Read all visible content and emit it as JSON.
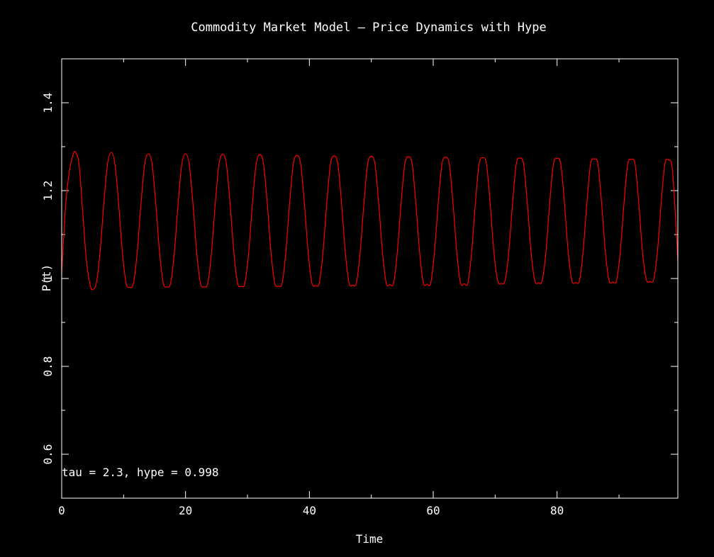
{
  "chart_data": {
    "type": "line",
    "title": "Commodity Market Model — Price Dynamics with Hype",
    "xlabel": "Time",
    "ylabel": "P(t)",
    "xlim": [
      0,
      99.5
    ],
    "ylim": [
      0.5,
      1.5
    ],
    "xticks": [
      0,
      20,
      40,
      60,
      80
    ],
    "yticks": [
      0.6,
      0.8,
      1,
      1.2,
      1.4
    ],
    "xtick_labels": [
      "0",
      "20",
      "40",
      "60",
      "80"
    ],
    "ytick_labels": [
      "0.6",
      "0.8",
      "1",
      "1.2",
      "1.4"
    ],
    "annotation": "tau = 2.3, hype = 0.998",
    "grid": false,
    "series": [
      {
        "color": "#ff0000",
        "points": [
          [
            0.0,
            1.01
          ],
          [
            0.6,
            1.16
          ],
          [
            1.2,
            1.24
          ],
          [
            1.8,
            1.28
          ],
          [
            2.2,
            1.288
          ],
          [
            2.8,
            1.26
          ],
          [
            3.4,
            1.15
          ],
          [
            4.0,
            1.04
          ],
          [
            4.6,
            0.985
          ],
          [
            5.0,
            0.975
          ],
          [
            5.6,
            0.99
          ],
          [
            6.2,
            1.06
          ],
          [
            6.8,
            1.17
          ],
          [
            7.4,
            1.26
          ],
          [
            8.0,
            1.287
          ],
          [
            8.6,
            1.26
          ],
          [
            9.2,
            1.17
          ],
          [
            9.8,
            1.06
          ],
          [
            10.4,
            0.99
          ],
          [
            11.0,
            0.98
          ],
          [
            11.6,
            0.99
          ],
          [
            12.2,
            1.06
          ],
          [
            12.8,
            1.17
          ],
          [
            13.4,
            1.26
          ],
          [
            14.0,
            1.284
          ],
          [
            14.6,
            1.26
          ],
          [
            15.2,
            1.17
          ],
          [
            15.8,
            1.06
          ],
          [
            16.4,
            0.99
          ],
          [
            17.0,
            0.981
          ],
          [
            17.6,
            0.99
          ],
          [
            18.2,
            1.06
          ],
          [
            18.8,
            1.17
          ],
          [
            19.4,
            1.26
          ],
          [
            20.0,
            1.284
          ],
          [
            20.6,
            1.26
          ],
          [
            21.2,
            1.17
          ],
          [
            21.8,
            1.06
          ],
          [
            22.4,
            0.99
          ],
          [
            23.0,
            0.981
          ],
          [
            23.6,
            0.99
          ],
          [
            24.2,
            1.06
          ],
          [
            24.8,
            1.17
          ],
          [
            25.4,
            1.26
          ],
          [
            26.0,
            1.283
          ],
          [
            26.6,
            1.26
          ],
          [
            27.2,
            1.17
          ],
          [
            27.8,
            1.06
          ],
          [
            28.4,
            0.99
          ],
          [
            29.0,
            0.982
          ],
          [
            29.6,
            0.99
          ],
          [
            30.2,
            1.06
          ],
          [
            30.8,
            1.17
          ],
          [
            31.4,
            1.26
          ],
          [
            32.0,
            1.282
          ],
          [
            32.6,
            1.26
          ],
          [
            33.2,
            1.17
          ],
          [
            33.8,
            1.06
          ],
          [
            34.4,
            0.99
          ],
          [
            35.0,
            0.983
          ],
          [
            35.6,
            0.99
          ],
          [
            36.2,
            1.06
          ],
          [
            36.8,
            1.17
          ],
          [
            37.4,
            1.26
          ],
          [
            38.0,
            1.28
          ],
          [
            38.6,
            1.26
          ],
          [
            39.2,
            1.17
          ],
          [
            39.8,
            1.06
          ],
          [
            40.4,
            0.99
          ],
          [
            41.0,
            0.984
          ],
          [
            41.6,
            0.99
          ],
          [
            42.2,
            1.06
          ],
          [
            42.8,
            1.17
          ],
          [
            43.4,
            1.26
          ],
          [
            44.0,
            1.279
          ],
          [
            44.6,
            1.26
          ],
          [
            45.2,
            1.17
          ],
          [
            45.8,
            1.06
          ],
          [
            46.4,
            0.99
          ],
          [
            47.0,
            0.985
          ],
          [
            47.6,
            0.99
          ],
          [
            48.2,
            1.06
          ],
          [
            48.8,
            1.17
          ],
          [
            49.4,
            1.26
          ],
          [
            50.0,
            1.278
          ],
          [
            50.6,
            1.26
          ],
          [
            51.2,
            1.17
          ],
          [
            51.8,
            1.06
          ],
          [
            52.4,
            0.99
          ],
          [
            53.0,
            0.986
          ],
          [
            53.6,
            0.99
          ],
          [
            54.2,
            1.06
          ],
          [
            54.8,
            1.17
          ],
          [
            55.4,
            1.26
          ],
          [
            56.0,
            1.277
          ],
          [
            56.6,
            1.26
          ],
          [
            57.2,
            1.17
          ],
          [
            57.8,
            1.06
          ],
          [
            58.4,
            0.99
          ],
          [
            59.0,
            0.987
          ],
          [
            59.6,
            0.99
          ],
          [
            60.2,
            1.06
          ],
          [
            60.8,
            1.17
          ],
          [
            61.4,
            1.26
          ],
          [
            62.0,
            1.276
          ],
          [
            62.6,
            1.26
          ],
          [
            63.2,
            1.17
          ],
          [
            63.8,
            1.06
          ],
          [
            64.4,
            0.99
          ],
          [
            65.0,
            0.988
          ],
          [
            65.6,
            0.99
          ],
          [
            66.2,
            1.06
          ],
          [
            66.8,
            1.17
          ],
          [
            67.4,
            1.26
          ],
          [
            68.0,
            1.275
          ],
          [
            68.6,
            1.26
          ],
          [
            69.2,
            1.17
          ],
          [
            69.8,
            1.06
          ],
          [
            70.4,
            0.995
          ],
          [
            71.0,
            0.989
          ],
          [
            71.6,
            0.995
          ],
          [
            72.2,
            1.06
          ],
          [
            72.8,
            1.17
          ],
          [
            73.4,
            1.26
          ],
          [
            74.0,
            1.274
          ],
          [
            74.6,
            1.26
          ],
          [
            75.2,
            1.17
          ],
          [
            75.8,
            1.06
          ],
          [
            76.4,
            0.995
          ],
          [
            77.0,
            0.99
          ],
          [
            77.6,
            0.995
          ],
          [
            78.2,
            1.06
          ],
          [
            78.8,
            1.17
          ],
          [
            79.4,
            1.26
          ],
          [
            80.0,
            1.273
          ],
          [
            80.6,
            1.26
          ],
          [
            81.2,
            1.17
          ],
          [
            81.8,
            1.06
          ],
          [
            82.4,
            0.995
          ],
          [
            83.0,
            0.991
          ],
          [
            83.6,
            0.995
          ],
          [
            84.2,
            1.06
          ],
          [
            84.8,
            1.17
          ],
          [
            85.4,
            1.26
          ],
          [
            86.0,
            1.272
          ],
          [
            86.6,
            1.26
          ],
          [
            87.2,
            1.17
          ],
          [
            87.8,
            1.06
          ],
          [
            88.4,
            0.995
          ],
          [
            89.0,
            0.992
          ],
          [
            89.6,
            0.995
          ],
          [
            90.2,
            1.06
          ],
          [
            90.8,
            1.17
          ],
          [
            91.4,
            1.26
          ],
          [
            92.0,
            1.271
          ],
          [
            92.6,
            1.26
          ],
          [
            93.2,
            1.17
          ],
          [
            93.8,
            1.06
          ],
          [
            94.4,
            0.998
          ],
          [
            95.0,
            0.993
          ],
          [
            95.6,
            0.998
          ],
          [
            96.2,
            1.06
          ],
          [
            96.8,
            1.17
          ],
          [
            97.4,
            1.26
          ],
          [
            98.0,
            1.27
          ],
          [
            98.6,
            1.25
          ],
          [
            99.2,
            1.12
          ],
          [
            99.5,
            1.04
          ]
        ]
      }
    ]
  }
}
